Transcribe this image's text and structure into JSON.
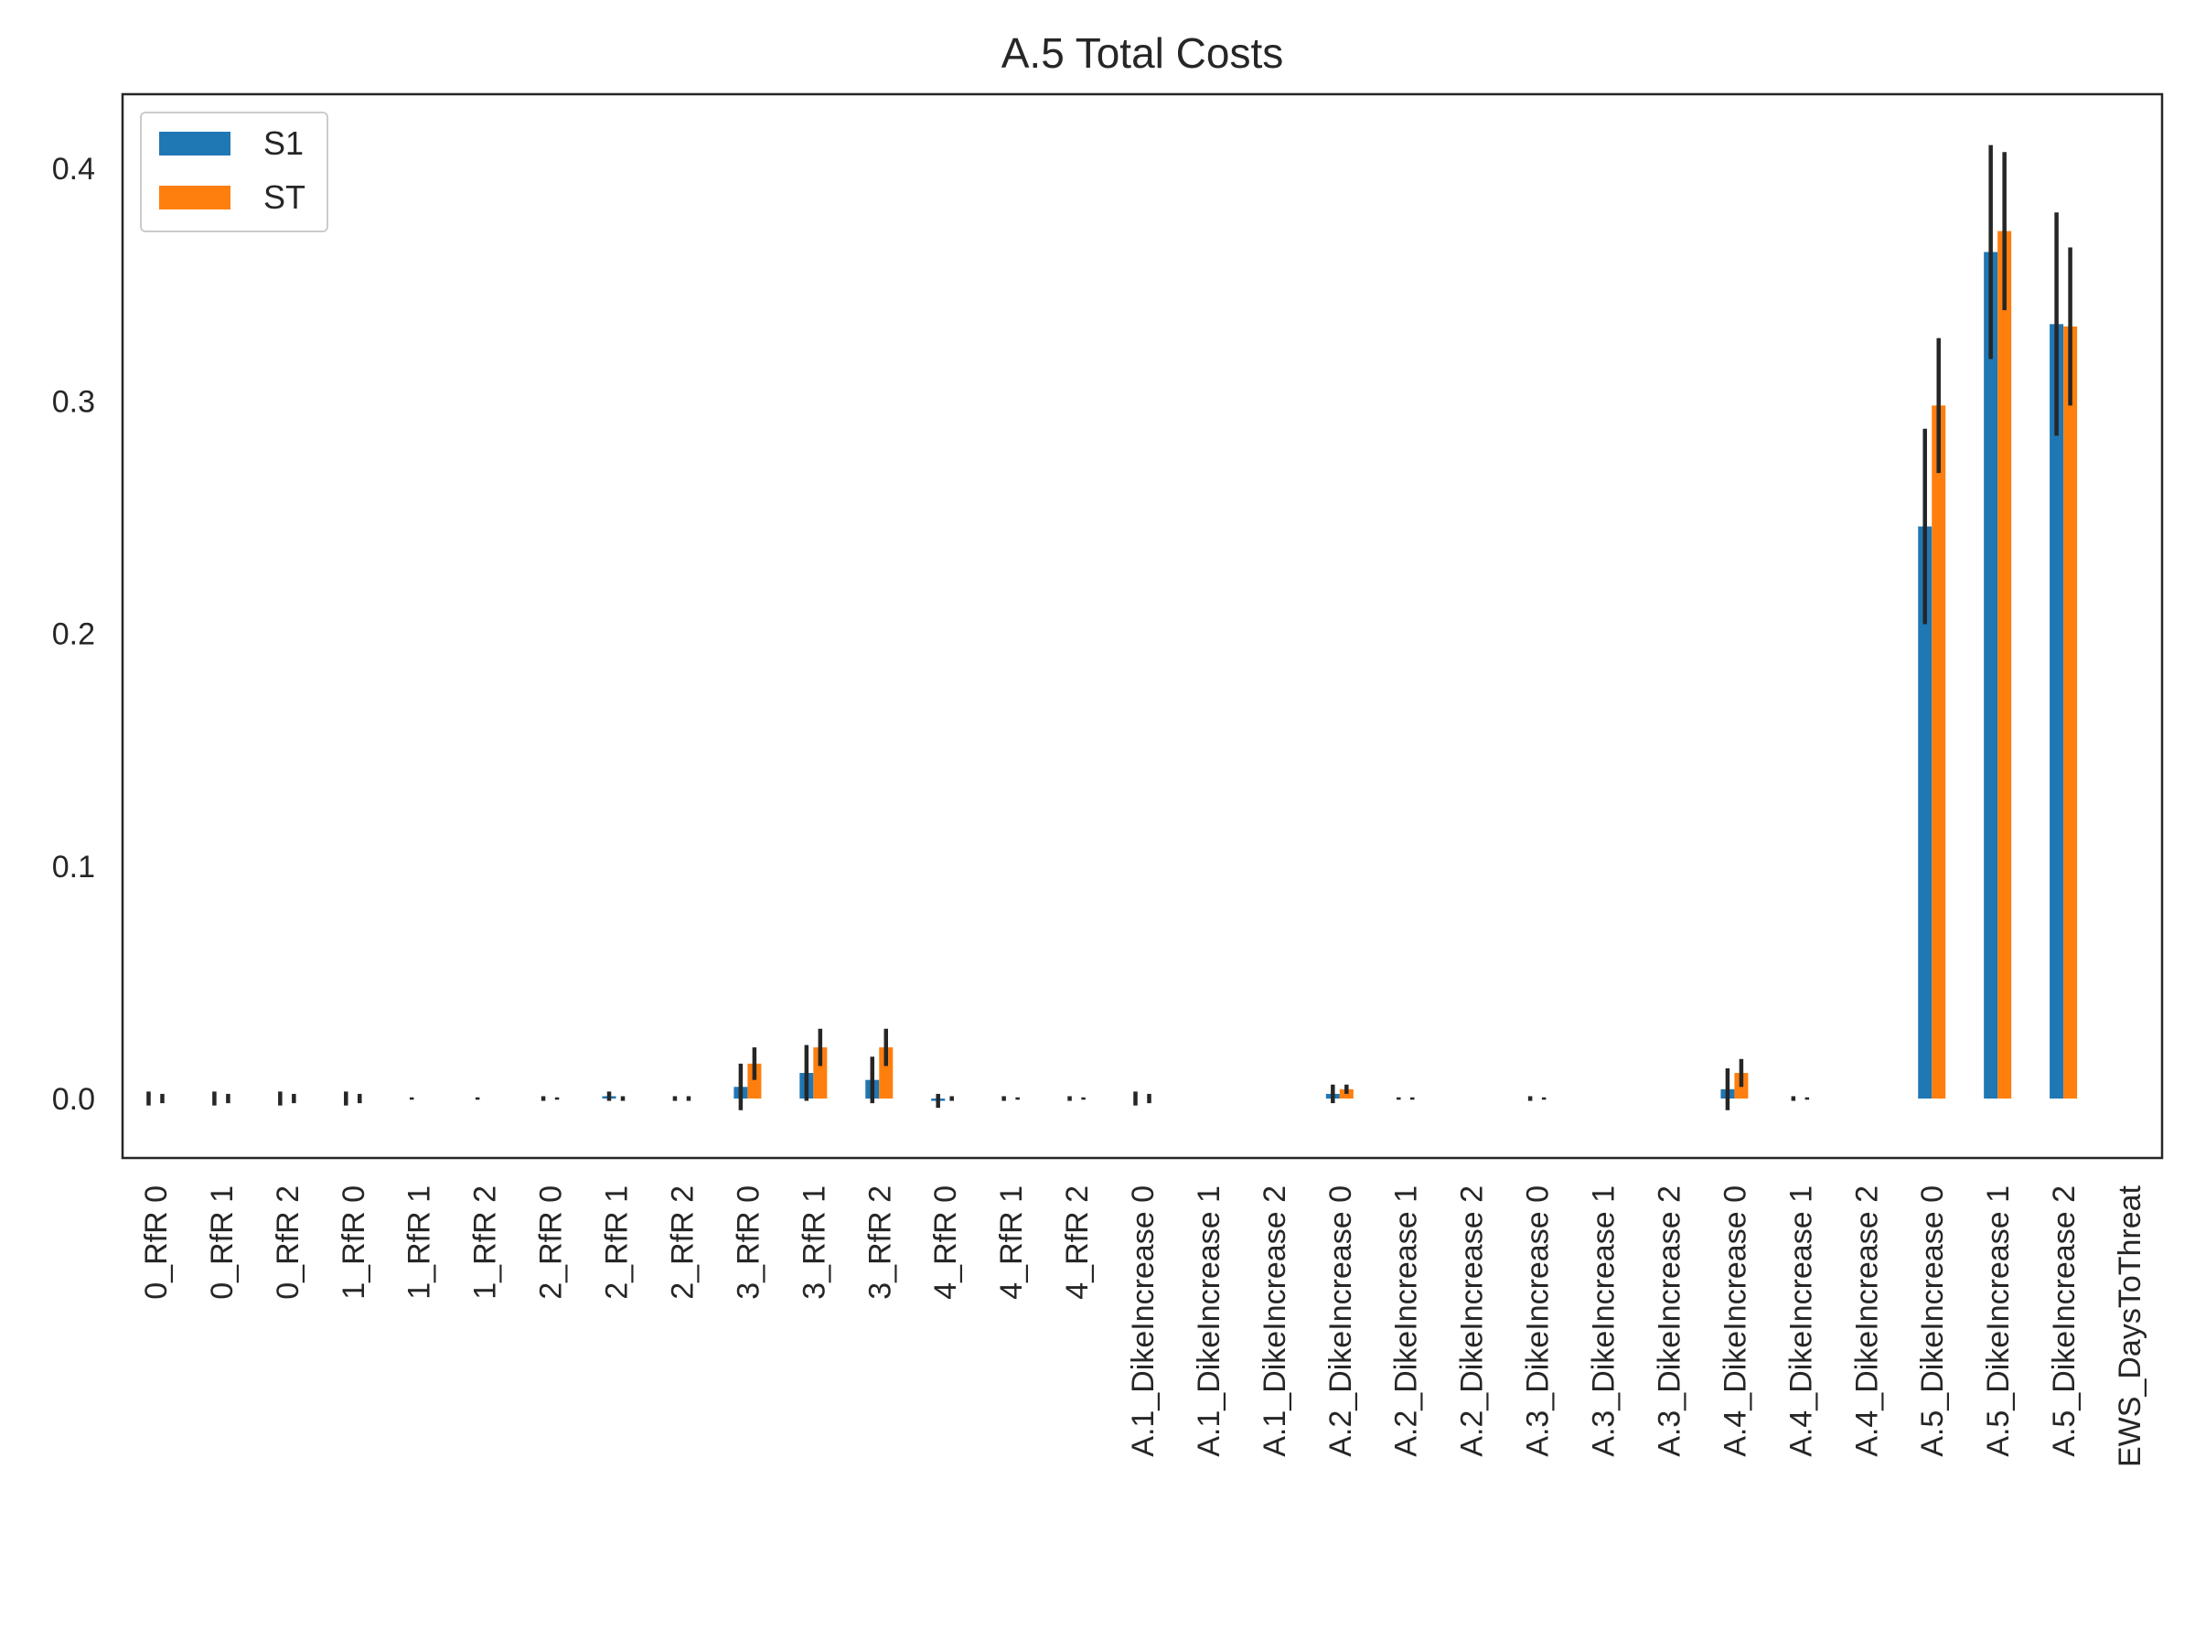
{
  "chart_data": {
    "type": "bar",
    "title": "A.5 Total Costs",
    "xlabel": "",
    "ylabel": "",
    "ylim": [
      -0.025,
      0.43
    ],
    "yticks": [
      "0.0",
      "0.1",
      "0.2",
      "0.3",
      "0.4"
    ],
    "grid": false,
    "legend_position": "top-left",
    "categories": [
      "0_RfR 0",
      "0_RfR 1",
      "0_RfR 2",
      "1_RfR 0",
      "1_RfR 1",
      "1_RfR 2",
      "2_RfR 0",
      "2_RfR 1",
      "2_RfR 2",
      "3_RfR 0",
      "3_RfR 1",
      "3_RfR 2",
      "4_RfR 0",
      "4_RfR 1",
      "4_RfR 2",
      "A.1_DikeIncrease 0",
      "A.1_DikeIncrease 1",
      "A.1_DikeIncrease 2",
      "A.2_DikeIncrease 0",
      "A.2_DikeIncrease 1",
      "A.2_DikeIncrease 2",
      "A.3_DikeIncrease 0",
      "A.3_DikeIncrease 1",
      "A.3_DikeIncrease 2",
      "A.4_DikeIncrease 0",
      "A.4_DikeIncrease 1",
      "A.4_DikeIncrease 2",
      "A.5_DikeIncrease 0",
      "A.5_DikeIncrease 1",
      "A.5_DikeIncrease 2",
      "EWS_DaysToThreat"
    ],
    "series": [
      {
        "name": "S1",
        "color": "#1f77b4",
        "values": [
          0.0,
          0.0,
          0.0,
          0.0,
          0.0,
          0.0,
          0.0,
          0.001,
          0.0,
          0.005,
          0.011,
          0.008,
          -0.001,
          0.0,
          0.0,
          0.0,
          0.0,
          0.0,
          0.002,
          0.0,
          0.0,
          0.0,
          0.0,
          0.0,
          0.004,
          0.0,
          0.0,
          0.246,
          0.364,
          0.333,
          0.0
        ],
        "errors": [
          0.003,
          0.003,
          0.003,
          0.003,
          0.0005,
          0.0005,
          0.001,
          0.002,
          0.001,
          0.01,
          0.012,
          0.01,
          0.003,
          0.001,
          0.001,
          0.003,
          0.0,
          0.0,
          0.004,
          0.0005,
          0.0,
          0.001,
          0.0,
          0.0,
          0.009,
          0.001,
          0.0,
          0.042,
          0.046,
          0.048,
          0.0
        ]
      },
      {
        "name": "ST",
        "color": "#ff7f0e",
        "values": [
          0.0,
          0.0,
          0.0,
          0.0,
          0.0,
          0.0,
          0.0,
          0.0,
          0.0,
          0.015,
          0.022,
          0.022,
          0.0,
          0.0,
          0.0,
          0.0,
          0.0,
          0.0,
          0.004,
          0.0,
          0.0,
          0.0,
          0.0,
          0.0,
          0.011,
          0.0,
          0.0,
          0.298,
          0.373,
          0.332,
          0.0
        ],
        "errors": [
          0.002,
          0.002,
          0.002,
          0.002,
          0.0,
          0.0,
          0.0005,
          0.001,
          0.001,
          0.007,
          0.008,
          0.008,
          0.001,
          0.0005,
          0.0005,
          0.002,
          0.0,
          0.0,
          0.002,
          0.0005,
          0.0,
          0.0005,
          0.0,
          0.0,
          0.006,
          0.0005,
          0.0,
          0.029,
          0.034,
          0.034,
          0.0
        ]
      }
    ]
  }
}
